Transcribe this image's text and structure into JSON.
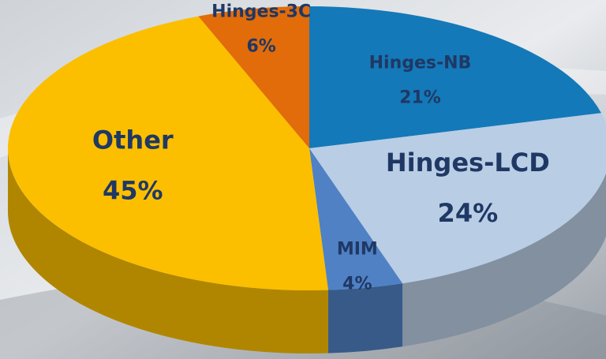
{
  "chart_data": {
    "type": "pie",
    "categories": [
      "Hinges-NB",
      "Hinges-LCD",
      "MIM",
      "Other",
      "Hinges-3C"
    ],
    "values": [
      21,
      24,
      4,
      45,
      6
    ],
    "value_labels": [
      "21%",
      "24%",
      "4%",
      "45%",
      "6%"
    ],
    "colors": [
      "#1479b8",
      "#b9cde5",
      "#4f81c4",
      "#fbbf00",
      "#e26b0a"
    ]
  }
}
